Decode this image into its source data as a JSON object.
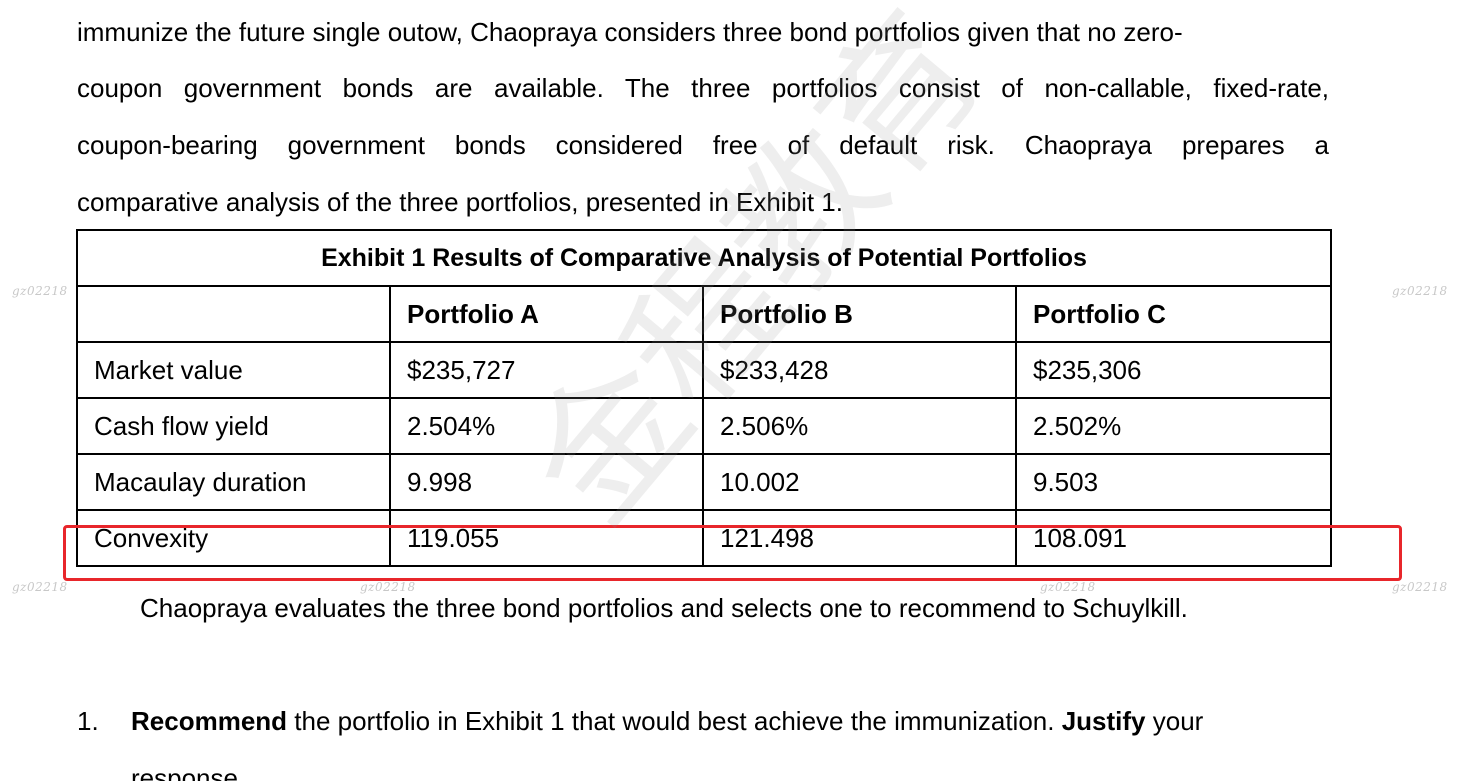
{
  "intro": {
    "line1": "immunize the future single outow, Chaopraya considers three bond portfolios given that no zero-",
    "line2": "coupon government bonds are available. The three portfolios consist of non-callable, fixed-rate,",
    "line3": "coupon-bearing government bonds considered free of default risk. Chaopraya prepares a",
    "line4": "comparative analysis of the three portfolios, presented in Exhibit 1."
  },
  "exhibit": {
    "caption": "Exhibit 1 Results of Comparative Analysis of Potential Portfolios",
    "columns": [
      "",
      "Portfolio A",
      "Portfolio B",
      "Portfolio C"
    ],
    "rows": [
      {
        "label": "Market value",
        "a": "$235,727",
        "b": "$233,428",
        "c": "$235,306"
      },
      {
        "label": "Cash flow yield",
        "a": "2.504%",
        "b": "2.506%",
        "c": "2.502%"
      },
      {
        "label": "Macaulay duration",
        "a": "9.998",
        "b": "10.002",
        "c": "9.503"
      },
      {
        "label": "Convexity",
        "a": "119.055",
        "b": "121.498",
        "c": "108.091"
      }
    ],
    "highlighted_row": "Convexity",
    "highlight_color": "#e8262b"
  },
  "after_text": "Chaopraya evaluates the three bond portfolios and selects one to recommend to Schuylkill.",
  "question": {
    "number": "1.",
    "bold1": "Recommend",
    "text1": " the portfolio in Exhibit 1 that would best achieve the immunization. ",
    "bold2": "Justify",
    "text2": " your",
    "line2": "response."
  },
  "watermark": {
    "small": "gz02218",
    "large": "金程教育"
  }
}
